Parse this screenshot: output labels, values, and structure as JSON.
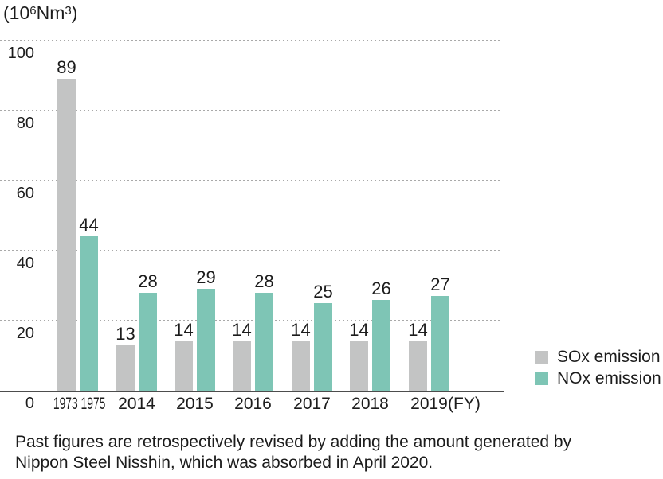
{
  "unit_label": {
    "open": "(10",
    "exp1": "6",
    "mid": "Nm",
    "exp2": "3",
    "close": ")"
  },
  "axis": {
    "fy_label": "(FY)"
  },
  "legend": {
    "items": [
      {
        "label": "SOx emission",
        "color": "#c3c4c4"
      },
      {
        "label": "NOx emission",
        "color": "#7ec5b5"
      }
    ]
  },
  "footnote": {
    "line1": "Past figures are retrospectively revised by adding the amount generated by",
    "line2": "Nippon Steel Nisshin, which was absorbed in April 2020."
  },
  "chart_data": {
    "type": "bar",
    "ylabel": "(10⁶Nm³)",
    "xlabel": "(FY)",
    "ylim": [
      0,
      100
    ],
    "yticks": [
      100,
      80,
      60,
      40,
      20,
      0
    ],
    "grid": "horizontal-dotted",
    "legend_position": "right-bottom",
    "categories": [
      "1973 1975",
      "2014",
      "2015",
      "2016",
      "2017",
      "2018",
      "2019"
    ],
    "category_note": "first group: SOx bar is FY1973, NOx bar is FY1975",
    "series": [
      {
        "name": "SOx emission",
        "color": "#c3c4c4",
        "values": [
          89,
          13,
          14,
          14,
          14,
          14,
          14
        ]
      },
      {
        "name": "NOx emission",
        "color": "#7ec5b5",
        "values": [
          44,
          28,
          29,
          28,
          25,
          26,
          27
        ]
      }
    ]
  }
}
